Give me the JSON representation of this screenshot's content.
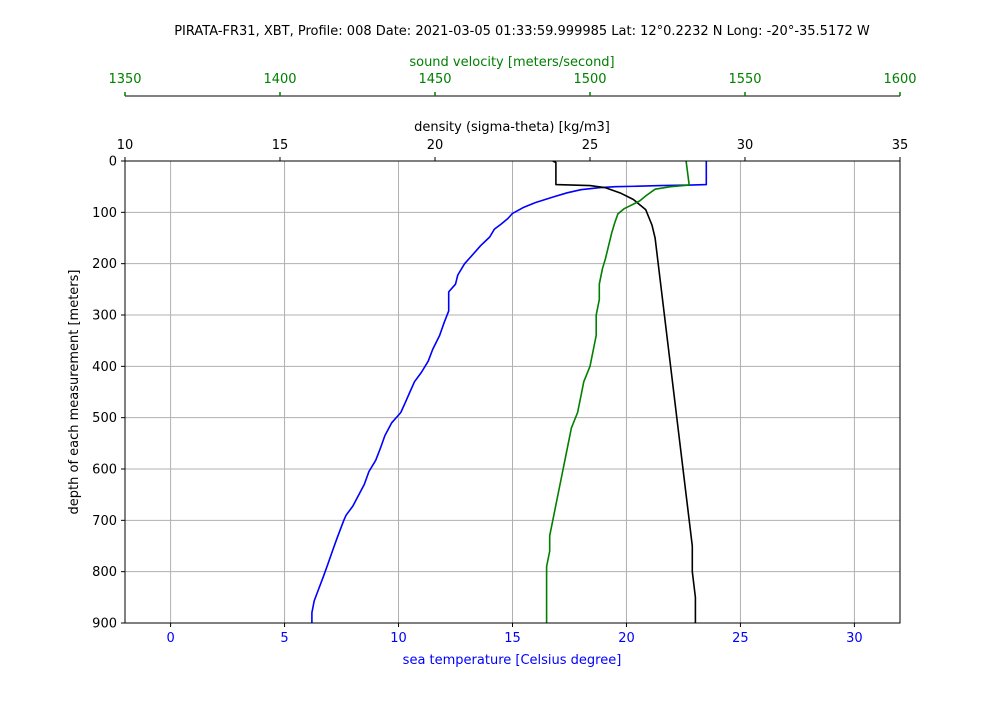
{
  "chart_data": {
    "type": "line",
    "title": "PIRATA-FR31, XBT, Profile: 008 Date: 2021-03-05 01:33:59.999985 Lat: 12°0.2232 N Long: -20°-35.5172 W",
    "ylabel": "depth of each measurement [meters]",
    "ylim": [
      900,
      0
    ],
    "yticks": [
      0,
      100,
      200,
      300,
      400,
      500,
      600,
      700,
      800,
      900
    ],
    "grid": true,
    "axes": {
      "temperature": {
        "label": "sea temperature [Celsius degree]",
        "position": "bottom",
        "color": "#0000ff",
        "lim": [
          -2,
          32
        ],
        "ticks": [
          0,
          5,
          10,
          15,
          20,
          25,
          30
        ]
      },
      "density": {
        "label": "density (sigma-theta) [kg/m3]",
        "position": "top",
        "color": "#000000",
        "lim": [
          10,
          35
        ],
        "ticks": [
          10,
          15,
          20,
          25,
          30,
          35
        ]
      },
      "sound_velocity": {
        "label": "sound velocity [meters/second]",
        "position": "top-outer",
        "color": "#008000",
        "lim": [
          1350,
          1600
        ],
        "ticks": [
          1350,
          1400,
          1450,
          1500,
          1550,
          1600
        ]
      }
    },
    "series": [
      {
        "axis": "temperature",
        "color": "#0000ff",
        "points": [
          [
            23.5,
            0
          ],
          [
            23.5,
            46
          ],
          [
            22.8,
            47
          ],
          [
            21.5,
            48
          ],
          [
            20.5,
            49
          ],
          [
            19.5,
            50
          ],
          [
            18.8,
            52
          ],
          [
            18,
            56
          ],
          [
            17.4,
            62
          ],
          [
            16.8,
            70
          ],
          [
            16,
            81
          ],
          [
            15.5,
            90
          ],
          [
            15,
            102
          ],
          [
            14.8,
            112
          ],
          [
            14.5,
            123
          ],
          [
            14.2,
            133
          ],
          [
            14,
            148
          ],
          [
            13.6,
            165
          ],
          [
            13.2,
            185
          ],
          [
            12.9,
            200
          ],
          [
            12.6,
            222
          ],
          [
            12.5,
            240
          ],
          [
            12.2,
            255
          ],
          [
            12.2,
            292
          ],
          [
            12,
            315
          ],
          [
            11.8,
            340
          ],
          [
            11.5,
            367
          ],
          [
            11.3,
            390
          ],
          [
            11,
            412
          ],
          [
            10.7,
            430
          ],
          [
            10.5,
            450
          ],
          [
            10.3,
            470
          ],
          [
            10.1,
            490
          ],
          [
            9.7,
            510
          ],
          [
            9.4,
            535
          ],
          [
            9.2,
            560
          ],
          [
            9,
            583
          ],
          [
            8.7,
            605
          ],
          [
            8.5,
            630
          ],
          [
            8.2,
            655
          ],
          [
            8.0,
            672
          ],
          [
            7.7,
            690
          ],
          [
            7.6,
            700
          ],
          [
            7.3,
            735
          ],
          [
            7.1,
            760
          ],
          [
            6.9,
            785
          ],
          [
            6.7,
            810
          ],
          [
            6.5,
            833
          ],
          [
            6.3,
            857
          ],
          [
            6.2,
            880
          ],
          [
            6.2,
            900
          ]
        ]
      },
      {
        "axis": "density",
        "color": "#000000",
        "points": [
          [
            23.8,
            0
          ],
          [
            23.9,
            3
          ],
          [
            23.9,
            46
          ],
          [
            25.0,
            48
          ],
          [
            25.5,
            52
          ],
          [
            26.0,
            63
          ],
          [
            26.4,
            75
          ],
          [
            26.6,
            85
          ],
          [
            26.8,
            95
          ],
          [
            26.9,
            110
          ],
          [
            27.0,
            125
          ],
          [
            27.1,
            150
          ],
          [
            27.2,
            200
          ],
          [
            27.3,
            250
          ],
          [
            27.4,
            300
          ],
          [
            27.5,
            350
          ],
          [
            27.6,
            400
          ],
          [
            27.7,
            450
          ],
          [
            27.8,
            500
          ],
          [
            27.9,
            550
          ],
          [
            28.0,
            600
          ],
          [
            28.1,
            650
          ],
          [
            28.2,
            700
          ],
          [
            28.3,
            750
          ],
          [
            28.3,
            800
          ],
          [
            28.4,
            850
          ],
          [
            28.4,
            900
          ]
        ]
      },
      {
        "axis": "sound_velocity",
        "color": "#008000",
        "points": [
          [
            1531,
            0
          ],
          [
            1532,
            47
          ],
          [
            1526,
            50
          ],
          [
            1521,
            55
          ],
          [
            1518,
            68
          ],
          [
            1516,
            78
          ],
          [
            1513,
            87
          ],
          [
            1511,
            93
          ],
          [
            1509,
            103
          ],
          [
            1508,
            120
          ],
          [
            1507,
            140
          ],
          [
            1506,
            165
          ],
          [
            1505,
            190
          ],
          [
            1504,
            210
          ],
          [
            1503,
            240
          ],
          [
            1503,
            270
          ],
          [
            1502,
            300
          ],
          [
            1502,
            340
          ],
          [
            1501,
            370
          ],
          [
            1500,
            400
          ],
          [
            1498,
            430
          ],
          [
            1497,
            460
          ],
          [
            1496,
            490
          ],
          [
            1494,
            520
          ],
          [
            1493,
            550
          ],
          [
            1492,
            580
          ],
          [
            1491,
            610
          ],
          [
            1490,
            640
          ],
          [
            1489,
            670
          ],
          [
            1488,
            700
          ],
          [
            1487,
            730
          ],
          [
            1487,
            760
          ],
          [
            1486,
            790
          ],
          [
            1486,
            820
          ],
          [
            1486,
            850
          ],
          [
            1486,
            880
          ],
          [
            1486,
            900
          ]
        ]
      }
    ]
  }
}
